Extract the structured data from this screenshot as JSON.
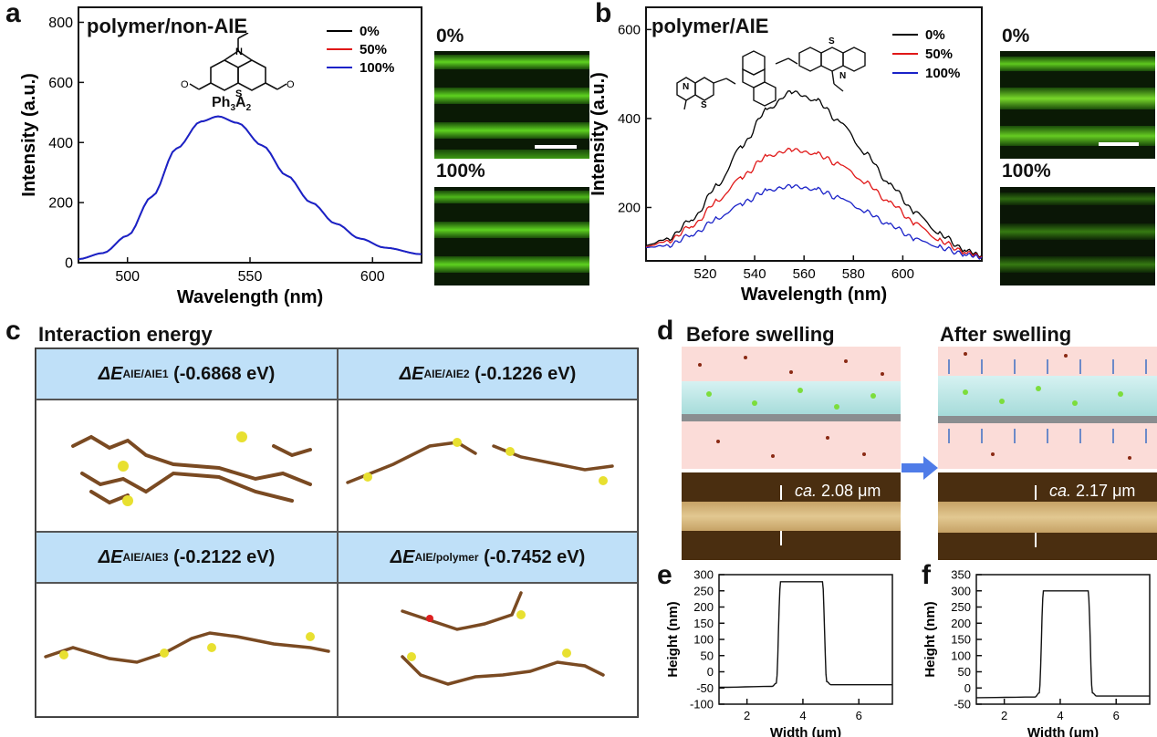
{
  "panel_labels": {
    "a": "a",
    "b": "b",
    "c": "c",
    "d": "d",
    "e": "e",
    "f": "f"
  },
  "panel_a": {
    "title": "polymer/non-AIE",
    "molecule_label": "Ph3A2",
    "micro_top_label": "0%",
    "micro_bottom_label": "100%",
    "legend": [
      "0%",
      "50%",
      "100%"
    ]
  },
  "panel_b": {
    "title": "polymer/AIE",
    "micro_top_label": "0%",
    "micro_bottom_label": "100%",
    "legend": [
      "0%",
      "50%",
      "100%"
    ]
  },
  "panel_c": {
    "title": "Interaction energy",
    "cells": [
      {
        "sub": "AIE/AIE1",
        "value": "(-0.6868 eV)"
      },
      {
        "sub": "AIE/AIE2",
        "value": "(-0.1226 eV)"
      },
      {
        "sub": "AIE/AIE3",
        "value": "(-0.2122 eV)"
      },
      {
        "sub": "AIE/polymer",
        "value": "(-0.7452 eV)"
      }
    ],
    "delta_e": "ΔE"
  },
  "panel_d": {
    "before_title": "Before swelling",
    "after_title": "After swelling",
    "before_thickness_ca": "ca.",
    "before_thickness": "2.08 μm",
    "after_thickness_ca": "ca.",
    "after_thickness": "2.17 μm"
  },
  "colors": {
    "black": "#000000",
    "red": "#e01818",
    "blue": "#1a22c8",
    "header_blue": "#bfe0f8"
  },
  "chart_data": [
    {
      "id": "a",
      "type": "line",
      "title": "polymer/non-AIE",
      "xlabel": "Wavelength (nm)",
      "ylabel": "Intensity (a.u.)",
      "xlim": [
        480,
        620
      ],
      "ylim": [
        0,
        850
      ],
      "xticks": [
        500,
        550,
        600
      ],
      "yticks": [
        0,
        200,
        400,
        600,
        800
      ],
      "series": [
        {
          "name": "0%",
          "color": "#000000",
          "peak": [
            537,
            487
          ]
        },
        {
          "name": "50%",
          "color": "#e01818",
          "peak": [
            537,
            487
          ]
        },
        {
          "name": "100%",
          "color": "#1a22c8",
          "peak": [
            537,
            487
          ]
        }
      ],
      "x": [
        480,
        490,
        500,
        510,
        520,
        530,
        537,
        545,
        555,
        565,
        575,
        585,
        595,
        605,
        620
      ],
      "values": [
        12,
        32,
        90,
        220,
        380,
        470,
        487,
        465,
        390,
        290,
        200,
        130,
        80,
        50,
        28
      ]
    },
    {
      "id": "b",
      "type": "line",
      "title": "polymer/AIE",
      "xlabel": "Wavelength (nm)",
      "ylabel": "Intensity (a.u.)",
      "xlim": [
        496,
        632
      ],
      "ylim": [
        80,
        650
      ],
      "xticks": [
        520,
        540,
        560,
        580,
        600
      ],
      "yticks": [
        200,
        400,
        600
      ],
      "series": [
        {
          "name": "0%",
          "color": "#000000",
          "x": [
            496,
            505,
            515,
            525,
            535,
            545,
            555,
            565,
            575,
            585,
            595,
            605,
            615,
            625,
            632
          ],
          "values": [
            115,
            130,
            175,
            250,
            340,
            420,
            460,
            440,
            390,
            320,
            250,
            190,
            140,
            105,
            92
          ]
        },
        {
          "name": "50%",
          "color": "#e01818",
          "x": [
            496,
            505,
            515,
            525,
            535,
            545,
            555,
            565,
            575,
            585,
            595,
            605,
            615,
            625,
            632
          ],
          "values": [
            112,
            125,
            160,
            215,
            270,
            315,
            330,
            320,
            295,
            255,
            210,
            165,
            125,
            100,
            90
          ]
        },
        {
          "name": "100%",
          "color": "#1a22c8",
          "x": [
            496,
            505,
            515,
            525,
            535,
            545,
            555,
            565,
            575,
            585,
            595,
            605,
            615,
            625,
            632
          ],
          "values": [
            110,
            115,
            140,
            175,
            210,
            238,
            248,
            240,
            220,
            190,
            160,
            130,
            110,
            95,
            88
          ]
        }
      ]
    },
    {
      "id": "e",
      "type": "line",
      "xlabel": "Width (μm)",
      "ylabel": "Height (nm)",
      "xlim": [
        1,
        7.2
      ],
      "ylim": [
        -100,
        300
      ],
      "xticks": [
        2,
        4,
        6
      ],
      "yticks": [
        -100,
        -50,
        0,
        50,
        100,
        150,
        200,
        250,
        300
      ],
      "x": [
        1,
        2.9,
        3.05,
        3.2,
        4,
        4.7,
        4.85,
        5,
        7.2
      ],
      "values": [
        -48,
        -45,
        -35,
        278,
        278,
        278,
        -30,
        -40,
        -40
      ]
    },
    {
      "id": "f",
      "type": "line",
      "xlabel": "Width (μm)",
      "ylabel": "Height (nm)",
      "xlim": [
        1,
        7.2
      ],
      "ylim": [
        -50,
        350
      ],
      "xticks": [
        2,
        4,
        6
      ],
      "yticks": [
        -50,
        0,
        50,
        100,
        150,
        200,
        250,
        300,
        350
      ],
      "x": [
        1,
        3.1,
        3.25,
        3.4,
        4.2,
        5.0,
        5.15,
        5.3,
        7.2
      ],
      "values": [
        -30,
        -28,
        -15,
        300,
        300,
        300,
        -15,
        -25,
        -25
      ]
    }
  ]
}
